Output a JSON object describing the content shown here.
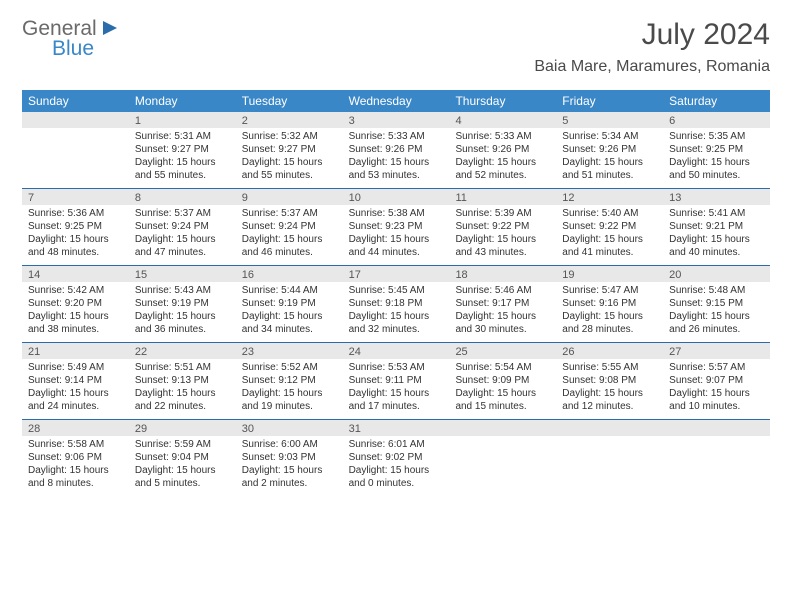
{
  "brand": {
    "word1": "General",
    "word2": "Blue"
  },
  "title": {
    "month": "July 2024",
    "location": "Baia Mare, Maramures, Romania"
  },
  "colors": {
    "header_bg": "#3a87c8",
    "header_text": "#ffffff",
    "rule": "#2b6caa",
    "daynum_bg": "#e8e8e8",
    "body_text": "#333333",
    "title_text": "#4a4a4a",
    "logo_grey": "#6a6a6a",
    "logo_blue": "#3a87c8"
  },
  "typography": {
    "title_fontsize": 30,
    "location_fontsize": 16,
    "header_fontsize": 12,
    "daynum_fontsize": 11,
    "cell_fontsize": 10,
    "font_family": "Arial"
  },
  "dayHeaders": [
    "Sunday",
    "Monday",
    "Tuesday",
    "Wednesday",
    "Thursday",
    "Friday",
    "Saturday"
  ],
  "weeks": [
    [
      {
        "n": "",
        "lines": []
      },
      {
        "n": "1",
        "lines": [
          "Sunrise: 5:31 AM",
          "Sunset: 9:27 PM",
          "Daylight: 15 hours and 55 minutes."
        ]
      },
      {
        "n": "2",
        "lines": [
          "Sunrise: 5:32 AM",
          "Sunset: 9:27 PM",
          "Daylight: 15 hours and 55 minutes."
        ]
      },
      {
        "n": "3",
        "lines": [
          "Sunrise: 5:33 AM",
          "Sunset: 9:26 PM",
          "Daylight: 15 hours and 53 minutes."
        ]
      },
      {
        "n": "4",
        "lines": [
          "Sunrise: 5:33 AM",
          "Sunset: 9:26 PM",
          "Daylight: 15 hours and 52 minutes."
        ]
      },
      {
        "n": "5",
        "lines": [
          "Sunrise: 5:34 AM",
          "Sunset: 9:26 PM",
          "Daylight: 15 hours and 51 minutes."
        ]
      },
      {
        "n": "6",
        "lines": [
          "Sunrise: 5:35 AM",
          "Sunset: 9:25 PM",
          "Daylight: 15 hours and 50 minutes."
        ]
      }
    ],
    [
      {
        "n": "7",
        "lines": [
          "Sunrise: 5:36 AM",
          "Sunset: 9:25 PM",
          "Daylight: 15 hours and 48 minutes."
        ]
      },
      {
        "n": "8",
        "lines": [
          "Sunrise: 5:37 AM",
          "Sunset: 9:24 PM",
          "Daylight: 15 hours and 47 minutes."
        ]
      },
      {
        "n": "9",
        "lines": [
          "Sunrise: 5:37 AM",
          "Sunset: 9:24 PM",
          "Daylight: 15 hours and 46 minutes."
        ]
      },
      {
        "n": "10",
        "lines": [
          "Sunrise: 5:38 AM",
          "Sunset: 9:23 PM",
          "Daylight: 15 hours and 44 minutes."
        ]
      },
      {
        "n": "11",
        "lines": [
          "Sunrise: 5:39 AM",
          "Sunset: 9:22 PM",
          "Daylight: 15 hours and 43 minutes."
        ]
      },
      {
        "n": "12",
        "lines": [
          "Sunrise: 5:40 AM",
          "Sunset: 9:22 PM",
          "Daylight: 15 hours and 41 minutes."
        ]
      },
      {
        "n": "13",
        "lines": [
          "Sunrise: 5:41 AM",
          "Sunset: 9:21 PM",
          "Daylight: 15 hours and 40 minutes."
        ]
      }
    ],
    [
      {
        "n": "14",
        "lines": [
          "Sunrise: 5:42 AM",
          "Sunset: 9:20 PM",
          "Daylight: 15 hours and 38 minutes."
        ]
      },
      {
        "n": "15",
        "lines": [
          "Sunrise: 5:43 AM",
          "Sunset: 9:19 PM",
          "Daylight: 15 hours and 36 minutes."
        ]
      },
      {
        "n": "16",
        "lines": [
          "Sunrise: 5:44 AM",
          "Sunset: 9:19 PM",
          "Daylight: 15 hours and 34 minutes."
        ]
      },
      {
        "n": "17",
        "lines": [
          "Sunrise: 5:45 AM",
          "Sunset: 9:18 PM",
          "Daylight: 15 hours and 32 minutes."
        ]
      },
      {
        "n": "18",
        "lines": [
          "Sunrise: 5:46 AM",
          "Sunset: 9:17 PM",
          "Daylight: 15 hours and 30 minutes."
        ]
      },
      {
        "n": "19",
        "lines": [
          "Sunrise: 5:47 AM",
          "Sunset: 9:16 PM",
          "Daylight: 15 hours and 28 minutes."
        ]
      },
      {
        "n": "20",
        "lines": [
          "Sunrise: 5:48 AM",
          "Sunset: 9:15 PM",
          "Daylight: 15 hours and 26 minutes."
        ]
      }
    ],
    [
      {
        "n": "21",
        "lines": [
          "Sunrise: 5:49 AM",
          "Sunset: 9:14 PM",
          "Daylight: 15 hours and 24 minutes."
        ]
      },
      {
        "n": "22",
        "lines": [
          "Sunrise: 5:51 AM",
          "Sunset: 9:13 PM",
          "Daylight: 15 hours and 22 minutes."
        ]
      },
      {
        "n": "23",
        "lines": [
          "Sunrise: 5:52 AM",
          "Sunset: 9:12 PM",
          "Daylight: 15 hours and 19 minutes."
        ]
      },
      {
        "n": "24",
        "lines": [
          "Sunrise: 5:53 AM",
          "Sunset: 9:11 PM",
          "Daylight: 15 hours and 17 minutes."
        ]
      },
      {
        "n": "25",
        "lines": [
          "Sunrise: 5:54 AM",
          "Sunset: 9:09 PM",
          "Daylight: 15 hours and 15 minutes."
        ]
      },
      {
        "n": "26",
        "lines": [
          "Sunrise: 5:55 AM",
          "Sunset: 9:08 PM",
          "Daylight: 15 hours and 12 minutes."
        ]
      },
      {
        "n": "27",
        "lines": [
          "Sunrise: 5:57 AM",
          "Sunset: 9:07 PM",
          "Daylight: 15 hours and 10 minutes."
        ]
      }
    ],
    [
      {
        "n": "28",
        "lines": [
          "Sunrise: 5:58 AM",
          "Sunset: 9:06 PM",
          "Daylight: 15 hours and 8 minutes."
        ]
      },
      {
        "n": "29",
        "lines": [
          "Sunrise: 5:59 AM",
          "Sunset: 9:04 PM",
          "Daylight: 15 hours and 5 minutes."
        ]
      },
      {
        "n": "30",
        "lines": [
          "Sunrise: 6:00 AM",
          "Sunset: 9:03 PM",
          "Daylight: 15 hours and 2 minutes."
        ]
      },
      {
        "n": "31",
        "lines": [
          "Sunrise: 6:01 AM",
          "Sunset: 9:02 PM",
          "Daylight: 15 hours and 0 minutes."
        ]
      },
      {
        "n": "",
        "lines": []
      },
      {
        "n": "",
        "lines": []
      },
      {
        "n": "",
        "lines": []
      }
    ]
  ]
}
